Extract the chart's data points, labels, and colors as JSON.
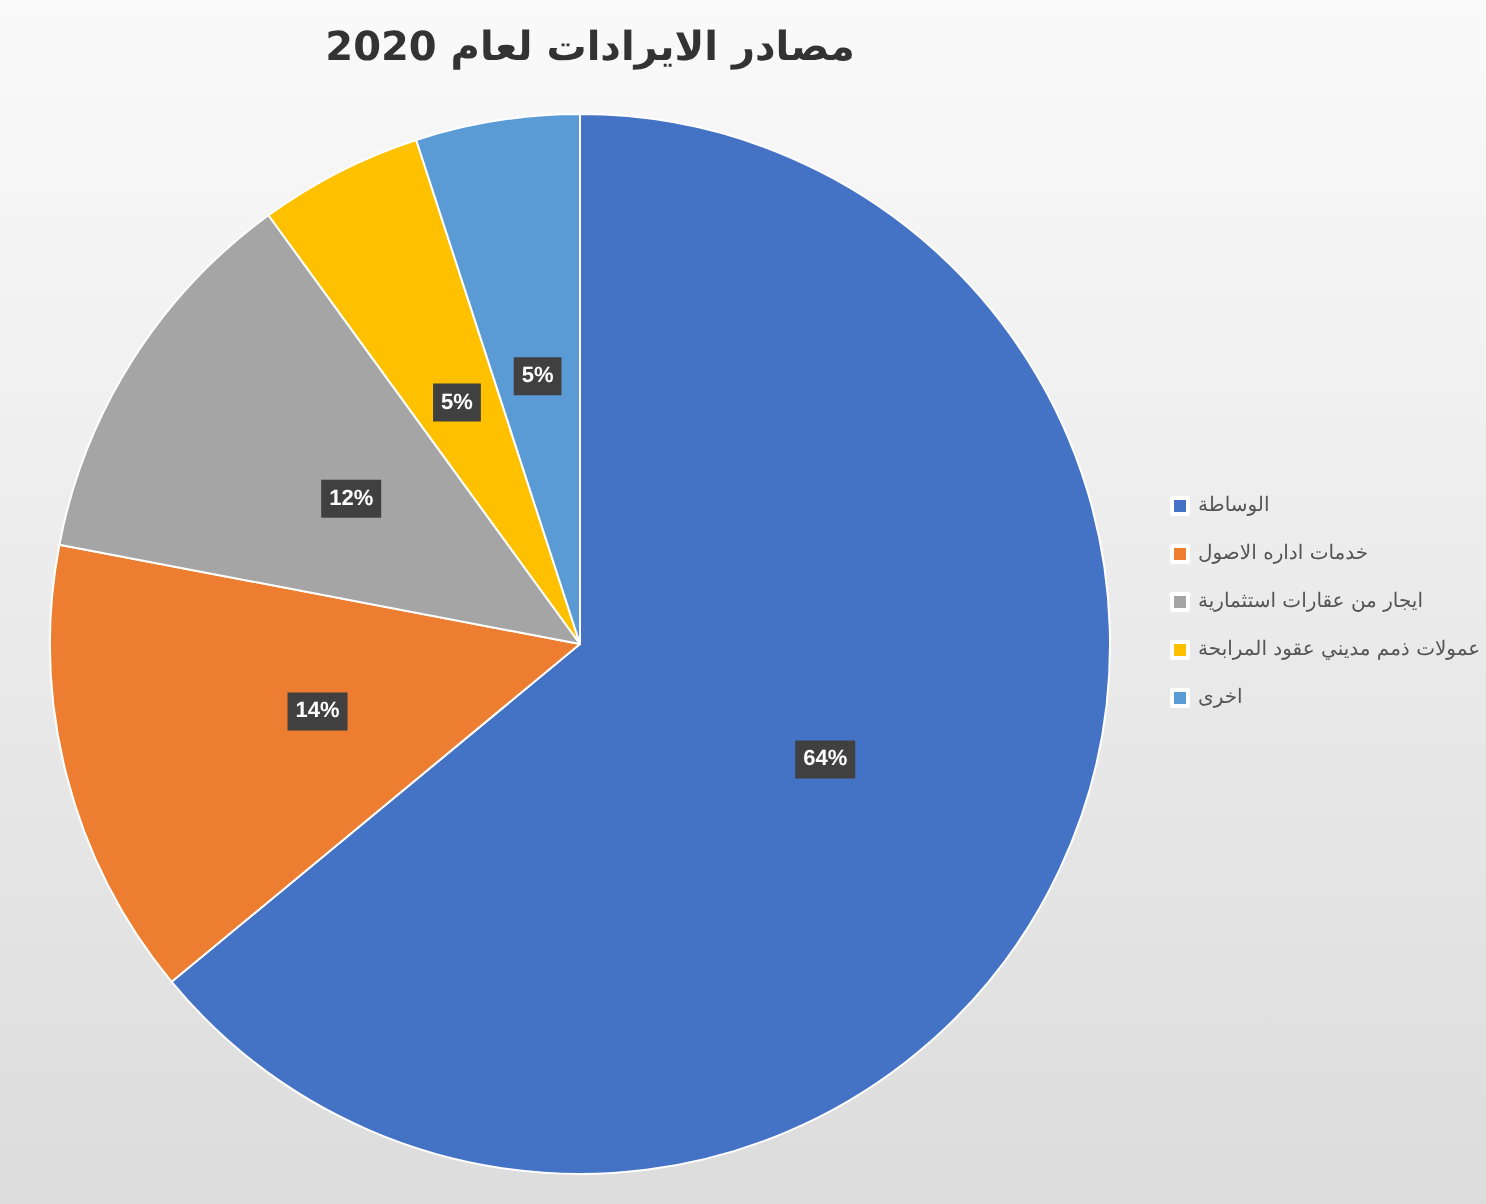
{
  "chart_data": {
    "type": "pie",
    "title": "مصادر الايرادات لعام 2020",
    "categories": [
      "الوساطة",
      "خدمات اداره الاصول",
      "ايجار من عقارات استثمارية",
      "عمولات ذمم مديني عقود المرابحة",
      "اخرى"
    ],
    "values": [
      64,
      14,
      12,
      5,
      5
    ],
    "colors": [
      "#4472c4",
      "#ed7d31",
      "#a5a5a5",
      "#ffc000",
      "#5b9bd5"
    ],
    "value_labels": [
      "64%",
      "14%",
      "12%",
      "5%",
      "5%"
    ],
    "legend": "right"
  }
}
